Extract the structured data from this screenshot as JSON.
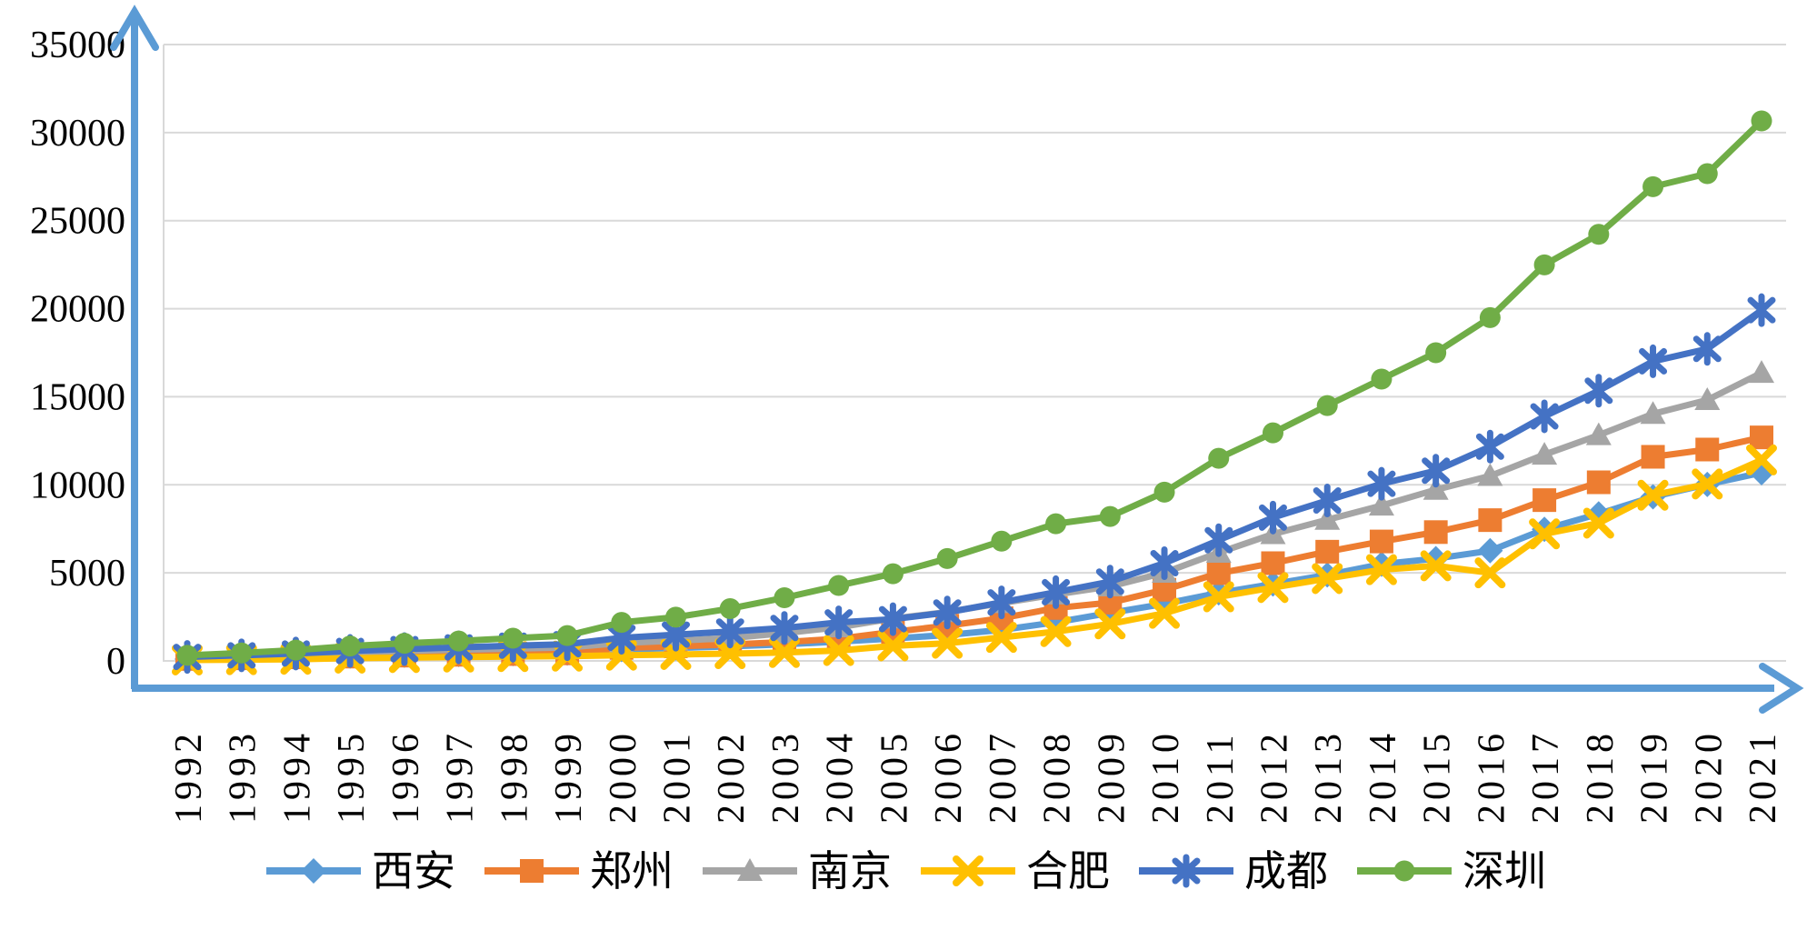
{
  "chart_data": {
    "type": "line",
    "x": [
      1992,
      1993,
      1994,
      1995,
      1996,
      1997,
      1998,
      1999,
      2000,
      2001,
      2002,
      2003,
      2004,
      2005,
      2006,
      2007,
      2008,
      2009,
      2010,
      2011,
      2012,
      2013,
      2014,
      2015,
      2016,
      2017,
      2018,
      2019,
      2020,
      2021
    ],
    "series": [
      {
        "id": "xian",
        "name": "西安",
        "color": "#5B9BD5",
        "marker": "diamond",
        "values": [
          105,
          138,
          184,
          277,
          324,
          365,
          412,
          443,
          646,
          735,
          824,
          941,
          1096,
          1270,
          1473,
          1763,
          2190,
          2724,
          3241,
          3864,
          4366,
          4884,
          5493,
          5810,
          6257,
          7470,
          8350,
          9321,
          10020,
          10688
        ]
      },
      {
        "id": "zhengzhou",
        "name": "郑州",
        "color": "#ED7D31",
        "marker": "square",
        "values": [
          112,
          150,
          203,
          245,
          300,
          346,
          389,
          430,
          738,
          829,
          928,
          1074,
          1258,
          1650,
          2002,
          2421,
          3004,
          3308,
          4041,
          4980,
          5550,
          6202,
          6783,
          7315,
          7994,
          9130,
          10143,
          11590,
          12003,
          12691
        ]
      },
      {
        "id": "nanjing",
        "name": "南京",
        "color": "#A5A5A5",
        "marker": "triangle",
        "values": [
          164,
          236,
          326,
          486,
          566,
          632,
          700,
          760,
          1021,
          1150,
          1295,
          1576,
          1910,
          2411,
          2774,
          3284,
          3775,
          4230,
          5010,
          6146,
          7202,
          8012,
          8821,
          9721,
          10503,
          11715,
          12820,
          14030,
          14818,
          16355
        ]
      },
      {
        "id": "hefei",
        "name": "合肥",
        "color": "#FFC000",
        "marker": "x",
        "values": [
          54,
          70,
          92,
          158,
          190,
          218,
          245,
          270,
          325,
          364,
          413,
          478,
          589,
          854,
          1002,
          1334,
          1665,
          2102,
          2702,
          3637,
          4164,
          4673,
          5181,
          5400,
          5000,
          7213,
          7823,
          9409,
          10046,
          11413
        ]
      },
      {
        "id": "chengdu",
        "name": "成都",
        "color": "#4472C4",
        "marker": "asterisk",
        "values": [
          227,
          317,
          421,
          565,
          670,
          770,
          862,
          950,
          1313,
          1492,
          1667,
          1871,
          2186,
          2371,
          2750,
          3324,
          3901,
          4503,
          5551,
          6855,
          8139,
          9109,
          10057,
          10801,
          12170,
          13889,
          15343,
          17013,
          17717,
          19917
        ]
      },
      {
        "id": "shenzhen",
        "name": "深圳",
        "color": "#70AD47",
        "marker": "circle",
        "values": [
          317,
          449,
          615,
          843,
          1001,
          1130,
          1289,
          1436,
          2187,
          2482,
          2970,
          3586,
          4282,
          4951,
          5814,
          6802,
          7787,
          8201,
          9582,
          11506,
          12950,
          14500,
          16002,
          17503,
          19493,
          22490,
          24222,
          26927,
          27670,
          30665
        ]
      }
    ],
    "title": "",
    "xlabel": "",
    "ylabel": "",
    "ylim": [
      0,
      35000
    ],
    "yticks": [
      0,
      5000,
      10000,
      15000,
      20000,
      25000,
      30000,
      35000
    ],
    "ytick_labels": [
      "0",
      "5000",
      "10000",
      "15000",
      "20000",
      "25000",
      "30000",
      "35000"
    ],
    "grid": "horizontal",
    "legend_position": "bottom",
    "legend_labels": [
      "西安",
      "郑州",
      "南京",
      "合肥",
      "成都",
      "深圳"
    ],
    "colors": {
      "axis_arrows": "#5B9BD5",
      "gridlines": "#D9D9D9",
      "background": "#FFFFFF",
      "text": "#000000"
    }
  }
}
